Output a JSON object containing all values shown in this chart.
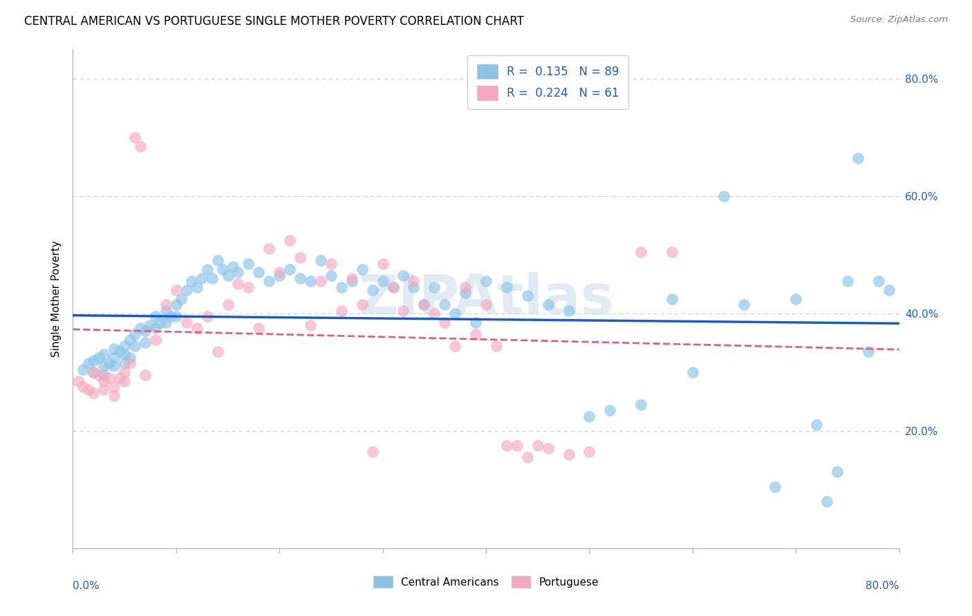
{
  "title": "CENTRAL AMERICAN VS PORTUGUESE SINGLE MOTHER POVERTY CORRELATION CHART",
  "source": "Source: ZipAtlas.com",
  "ylabel": "Single Mother Poverty",
  "ytick_labels": [
    "20.0%",
    "40.0%",
    "60.0%",
    "80.0%"
  ],
  "ytick_values": [
    0.2,
    0.4,
    0.6,
    0.8
  ],
  "xmin": 0.0,
  "xmax": 0.8,
  "ymin": 0.0,
  "ymax": 0.85,
  "R_blue": 0.135,
  "N_blue": 89,
  "R_pink": 0.224,
  "N_pink": 61,
  "blue_color": "#89c4e8",
  "pink_color": "#f5a8c0",
  "blue_line_color": "#1a5cbf",
  "pink_line_color": "#d95f8a",
  "legend_label_blue": "Central Americans",
  "legend_label_pink": "Portuguese",
  "watermark": "ZIPAtlas",
  "grid_color": "#cccccc",
  "blue_x": [
    0.01,
    0.015,
    0.02,
    0.02,
    0.025,
    0.03,
    0.03,
    0.03,
    0.035,
    0.04,
    0.04,
    0.04,
    0.045,
    0.05,
    0.05,
    0.05,
    0.055,
    0.055,
    0.06,
    0.06,
    0.065,
    0.07,
    0.07,
    0.075,
    0.08,
    0.08,
    0.085,
    0.09,
    0.09,
    0.095,
    0.1,
    0.1,
    0.105,
    0.11,
    0.115,
    0.12,
    0.125,
    0.13,
    0.135,
    0.14,
    0.145,
    0.15,
    0.155,
    0.16,
    0.17,
    0.18,
    0.19,
    0.2,
    0.21,
    0.22,
    0.23,
    0.24,
    0.25,
    0.26,
    0.27,
    0.28,
    0.29,
    0.3,
    0.31,
    0.32,
    0.33,
    0.34,
    0.35,
    0.36,
    0.37,
    0.38,
    0.39,
    0.4,
    0.42,
    0.44,
    0.46,
    0.48,
    0.5,
    0.52,
    0.55,
    0.58,
    0.6,
    0.63,
    0.65,
    0.68,
    0.7,
    0.72,
    0.73,
    0.74,
    0.75,
    0.76,
    0.77,
    0.78,
    0.79
  ],
  "blue_y": [
    0.305,
    0.315,
    0.32,
    0.3,
    0.325,
    0.31,
    0.295,
    0.33,
    0.315,
    0.34,
    0.325,
    0.31,
    0.335,
    0.345,
    0.33,
    0.315,
    0.355,
    0.325,
    0.365,
    0.345,
    0.375,
    0.37,
    0.35,
    0.38,
    0.395,
    0.375,
    0.385,
    0.405,
    0.385,
    0.395,
    0.415,
    0.395,
    0.425,
    0.44,
    0.455,
    0.445,
    0.46,
    0.475,
    0.46,
    0.49,
    0.475,
    0.465,
    0.48,
    0.47,
    0.485,
    0.47,
    0.455,
    0.465,
    0.475,
    0.46,
    0.455,
    0.49,
    0.465,
    0.445,
    0.455,
    0.475,
    0.44,
    0.455,
    0.445,
    0.465,
    0.445,
    0.415,
    0.445,
    0.415,
    0.4,
    0.435,
    0.385,
    0.455,
    0.445,
    0.43,
    0.415,
    0.405,
    0.225,
    0.235,
    0.245,
    0.425,
    0.3,
    0.6,
    0.415,
    0.105,
    0.425,
    0.21,
    0.08,
    0.13,
    0.455,
    0.665,
    0.335,
    0.455,
    0.44
  ],
  "pink_x": [
    0.005,
    0.01,
    0.015,
    0.02,
    0.02,
    0.025,
    0.03,
    0.03,
    0.035,
    0.04,
    0.04,
    0.045,
    0.05,
    0.05,
    0.055,
    0.06,
    0.065,
    0.07,
    0.08,
    0.09,
    0.1,
    0.11,
    0.12,
    0.13,
    0.14,
    0.15,
    0.16,
    0.17,
    0.18,
    0.19,
    0.2,
    0.21,
    0.22,
    0.23,
    0.24,
    0.25,
    0.26,
    0.27,
    0.28,
    0.29,
    0.3,
    0.31,
    0.32,
    0.33,
    0.34,
    0.35,
    0.36,
    0.37,
    0.38,
    0.39,
    0.4,
    0.41,
    0.42,
    0.43,
    0.44,
    0.45,
    0.46,
    0.48,
    0.5,
    0.55,
    0.58
  ],
  "pink_y": [
    0.285,
    0.275,
    0.27,
    0.3,
    0.265,
    0.295,
    0.27,
    0.285,
    0.29,
    0.26,
    0.275,
    0.29,
    0.3,
    0.285,
    0.315,
    0.7,
    0.685,
    0.295,
    0.355,
    0.415,
    0.44,
    0.385,
    0.375,
    0.395,
    0.335,
    0.415,
    0.45,
    0.445,
    0.375,
    0.51,
    0.47,
    0.525,
    0.495,
    0.38,
    0.455,
    0.485,
    0.405,
    0.46,
    0.415,
    0.165,
    0.485,
    0.445,
    0.405,
    0.455,
    0.415,
    0.4,
    0.385,
    0.345,
    0.445,
    0.365,
    0.415,
    0.345,
    0.175,
    0.175,
    0.155,
    0.175,
    0.17,
    0.16,
    0.165,
    0.505,
    0.505
  ]
}
